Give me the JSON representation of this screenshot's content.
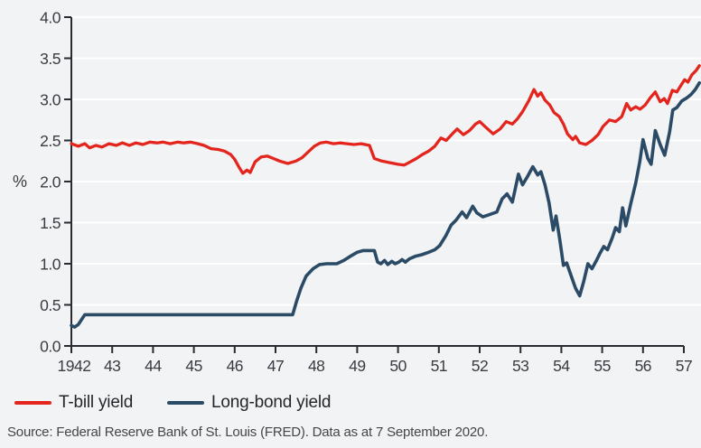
{
  "chart_data": {
    "type": "line",
    "title": "",
    "xlabel": "",
    "ylabel": "%",
    "xlim": [
      1942,
      1957
    ],
    "ylim": [
      0,
      4
    ],
    "yticks": [
      0.0,
      0.5,
      1.0,
      1.5,
      2.0,
      2.5,
      3.0,
      3.5,
      4.0
    ],
    "ytick_labels": [
      "0.0",
      "0.5",
      "1.0",
      "1.5",
      "2.0",
      "2.5",
      "3.0",
      "3.5",
      "4.0"
    ],
    "xticks": [
      1942,
      1943,
      1944,
      1945,
      1946,
      1947,
      1948,
      1949,
      1950,
      1951,
      1952,
      1953,
      1954,
      1955,
      1956,
      1957
    ],
    "xtick_labels": [
      "1942",
      "43",
      "44",
      "45",
      "46",
      "47",
      "48",
      "49",
      "50",
      "51",
      "52",
      "53",
      "54",
      "55",
      "56",
      "57"
    ],
    "grid": "horizontal-white-gridlines",
    "legend_position": "bottom-left",
    "background_color": "#f2f3f5",
    "gridline_color": "#ffffff",
    "axis_color": "#2a2a30",
    "tick_label_color": "#3b3b41",
    "series": [
      {
        "name": "T-bill yield",
        "color": "#e3251d",
        "width": 3.3,
        "points": [
          [
            1942.0,
            2.46
          ],
          [
            1942.17,
            2.43
          ],
          [
            1942.33,
            2.46
          ],
          [
            1942.45,
            2.41
          ],
          [
            1942.6,
            2.44
          ],
          [
            1942.75,
            2.42
          ],
          [
            1942.92,
            2.46
          ],
          [
            1943.1,
            2.44
          ],
          [
            1943.25,
            2.47
          ],
          [
            1943.42,
            2.44
          ],
          [
            1943.58,
            2.47
          ],
          [
            1943.75,
            2.45
          ],
          [
            1943.92,
            2.48
          ],
          [
            1944.1,
            2.47
          ],
          [
            1944.25,
            2.48
          ],
          [
            1944.42,
            2.46
          ],
          [
            1944.6,
            2.48
          ],
          [
            1944.75,
            2.47
          ],
          [
            1944.92,
            2.48
          ],
          [
            1945.1,
            2.46
          ],
          [
            1945.25,
            2.44
          ],
          [
            1945.42,
            2.4
          ],
          [
            1945.6,
            2.39
          ],
          [
            1945.75,
            2.37
          ],
          [
            1945.9,
            2.33
          ],
          [
            1946.0,
            2.27
          ],
          [
            1946.1,
            2.18
          ],
          [
            1946.2,
            2.1
          ],
          [
            1946.3,
            2.14
          ],
          [
            1946.38,
            2.11
          ],
          [
            1946.5,
            2.24
          ],
          [
            1946.65,
            2.3
          ],
          [
            1946.8,
            2.31
          ],
          [
            1946.95,
            2.28
          ],
          [
            1947.1,
            2.25
          ],
          [
            1947.3,
            2.22
          ],
          [
            1947.5,
            2.25
          ],
          [
            1947.65,
            2.29
          ],
          [
            1947.8,
            2.36
          ],
          [
            1947.95,
            2.43
          ],
          [
            1948.1,
            2.47
          ],
          [
            1948.25,
            2.48
          ],
          [
            1948.42,
            2.46
          ],
          [
            1948.58,
            2.47
          ],
          [
            1948.75,
            2.46
          ],
          [
            1948.92,
            2.45
          ],
          [
            1949.1,
            2.46
          ],
          [
            1949.3,
            2.44
          ],
          [
            1949.42,
            2.28
          ],
          [
            1949.6,
            2.25
          ],
          [
            1949.8,
            2.23
          ],
          [
            1950.0,
            2.21
          ],
          [
            1950.15,
            2.2
          ],
          [
            1950.3,
            2.24
          ],
          [
            1950.45,
            2.28
          ],
          [
            1950.6,
            2.33
          ],
          [
            1950.75,
            2.37
          ],
          [
            1950.9,
            2.43
          ],
          [
            1951.05,
            2.53
          ],
          [
            1951.18,
            2.5
          ],
          [
            1951.33,
            2.58
          ],
          [
            1951.45,
            2.64
          ],
          [
            1951.6,
            2.57
          ],
          [
            1951.75,
            2.62
          ],
          [
            1951.9,
            2.7
          ],
          [
            1952.0,
            2.73
          ],
          [
            1952.15,
            2.66
          ],
          [
            1952.33,
            2.58
          ],
          [
            1952.5,
            2.64
          ],
          [
            1952.65,
            2.73
          ],
          [
            1952.8,
            2.7
          ],
          [
            1952.92,
            2.76
          ],
          [
            1953.05,
            2.85
          ],
          [
            1953.2,
            2.98
          ],
          [
            1953.33,
            3.12
          ],
          [
            1953.42,
            3.04
          ],
          [
            1953.5,
            3.08
          ],
          [
            1953.6,
            2.99
          ],
          [
            1953.72,
            2.93
          ],
          [
            1953.82,
            2.84
          ],
          [
            1953.95,
            2.79
          ],
          [
            1954.05,
            2.7
          ],
          [
            1954.15,
            2.58
          ],
          [
            1954.28,
            2.51
          ],
          [
            1954.35,
            2.55
          ],
          [
            1954.45,
            2.47
          ],
          [
            1954.6,
            2.45
          ],
          [
            1954.75,
            2.5
          ],
          [
            1954.9,
            2.57
          ],
          [
            1955.02,
            2.67
          ],
          [
            1955.18,
            2.75
          ],
          [
            1955.33,
            2.73
          ],
          [
            1955.48,
            2.79
          ],
          [
            1955.6,
            2.95
          ],
          [
            1955.7,
            2.87
          ],
          [
            1955.82,
            2.91
          ],
          [
            1955.93,
            2.88
          ],
          [
            1956.05,
            2.93
          ],
          [
            1956.18,
            3.02
          ],
          [
            1956.3,
            3.09
          ],
          [
            1956.42,
            2.97
          ],
          [
            1956.52,
            3.01
          ],
          [
            1956.6,
            2.95
          ],
          [
            1956.72,
            3.11
          ],
          [
            1956.83,
            3.09
          ],
          [
            1956.93,
            3.17
          ],
          [
            1957.02,
            3.24
          ],
          [
            1957.1,
            3.21
          ],
          [
            1957.2,
            3.3
          ],
          [
            1957.3,
            3.35
          ],
          [
            1957.38,
            3.41
          ]
        ]
      },
      {
        "name": "Long-bond yield",
        "color": "#2b4a66",
        "width": 3.6,
        "points": [
          [
            1942.0,
            0.25
          ],
          [
            1942.08,
            0.23
          ],
          [
            1942.17,
            0.26
          ],
          [
            1942.33,
            0.38
          ],
          [
            1943.0,
            0.38
          ],
          [
            1944.0,
            0.38
          ],
          [
            1945.0,
            0.38
          ],
          [
            1946.0,
            0.38
          ],
          [
            1947.0,
            0.38
          ],
          [
            1947.42,
            0.38
          ],
          [
            1947.52,
            0.55
          ],
          [
            1947.62,
            0.7
          ],
          [
            1947.75,
            0.85
          ],
          [
            1947.92,
            0.94
          ],
          [
            1948.08,
            0.99
          ],
          [
            1948.25,
            1.0
          ],
          [
            1948.5,
            1.0
          ],
          [
            1948.67,
            1.04
          ],
          [
            1948.83,
            1.09
          ],
          [
            1949.0,
            1.14
          ],
          [
            1949.15,
            1.16
          ],
          [
            1949.42,
            1.16
          ],
          [
            1949.5,
            1.02
          ],
          [
            1949.58,
            1.0
          ],
          [
            1949.67,
            1.04
          ],
          [
            1949.75,
            0.99
          ],
          [
            1949.85,
            1.03
          ],
          [
            1949.93,
            1.0
          ],
          [
            1950.02,
            1.02
          ],
          [
            1950.1,
            1.05
          ],
          [
            1950.18,
            1.02
          ],
          [
            1950.28,
            1.06
          ],
          [
            1950.42,
            1.09
          ],
          [
            1950.58,
            1.11
          ],
          [
            1950.75,
            1.14
          ],
          [
            1950.9,
            1.17
          ],
          [
            1951.02,
            1.22
          ],
          [
            1951.17,
            1.34
          ],
          [
            1951.3,
            1.47
          ],
          [
            1951.42,
            1.53
          ],
          [
            1951.57,
            1.63
          ],
          [
            1951.68,
            1.56
          ],
          [
            1951.83,
            1.7
          ],
          [
            1951.93,
            1.62
          ],
          [
            1952.08,
            1.57
          ],
          [
            1952.25,
            1.6
          ],
          [
            1952.42,
            1.63
          ],
          [
            1952.55,
            1.79
          ],
          [
            1952.67,
            1.85
          ],
          [
            1952.8,
            1.75
          ],
          [
            1952.95,
            2.09
          ],
          [
            1953.05,
            1.96
          ],
          [
            1953.17,
            2.06
          ],
          [
            1953.3,
            2.18
          ],
          [
            1953.42,
            2.08
          ],
          [
            1953.5,
            2.12
          ],
          [
            1953.6,
            1.96
          ],
          [
            1953.7,
            1.74
          ],
          [
            1953.8,
            1.41
          ],
          [
            1953.87,
            1.58
          ],
          [
            1953.96,
            1.3
          ],
          [
            1954.05,
            0.98
          ],
          [
            1954.13,
            1.01
          ],
          [
            1954.25,
            0.84
          ],
          [
            1954.35,
            0.7
          ],
          [
            1954.45,
            0.61
          ],
          [
            1954.55,
            0.79
          ],
          [
            1954.65,
            1.0
          ],
          [
            1954.75,
            0.94
          ],
          [
            1954.85,
            1.03
          ],
          [
            1954.95,
            1.13
          ],
          [
            1955.04,
            1.21
          ],
          [
            1955.13,
            1.17
          ],
          [
            1955.25,
            1.32
          ],
          [
            1955.33,
            1.44
          ],
          [
            1955.42,
            1.39
          ],
          [
            1955.5,
            1.68
          ],
          [
            1955.58,
            1.46
          ],
          [
            1955.7,
            1.73
          ],
          [
            1955.82,
            1.98
          ],
          [
            1955.92,
            2.24
          ],
          [
            1956.0,
            2.51
          ],
          [
            1956.12,
            2.28
          ],
          [
            1956.2,
            2.21
          ],
          [
            1956.3,
            2.62
          ],
          [
            1956.42,
            2.45
          ],
          [
            1956.53,
            2.32
          ],
          [
            1956.65,
            2.6
          ],
          [
            1956.73,
            2.87
          ],
          [
            1956.83,
            2.9
          ],
          [
            1956.95,
            2.98
          ],
          [
            1957.08,
            3.02
          ],
          [
            1957.18,
            3.06
          ],
          [
            1957.28,
            3.12
          ],
          [
            1957.38,
            3.2
          ]
        ]
      }
    ]
  },
  "footer": {
    "source": "Source: Federal Reserve Bank of St. Louis (FRED). Data as at 7 September 2020."
  }
}
